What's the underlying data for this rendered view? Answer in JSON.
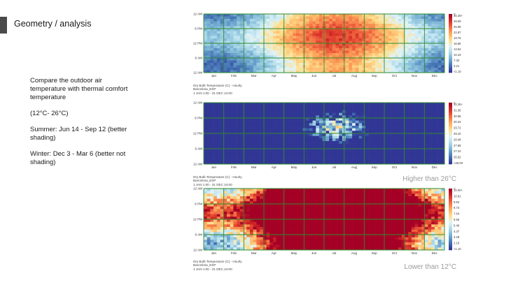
{
  "slide": {
    "title": "Geometry / analysis",
    "compare_text": "Compare the outdoor air temperature with thermal comfort temperature",
    "range_text": "(12°C- 26°C)",
    "summer_text": "Summer: Jun 14 - Sep 12 (better shading)",
    "winter_text": "Winter: Dec 3 - Mar 6 (better not shading)",
    "higher_label": "Higher than 26°C",
    "lower_label": "Lower than 12°C"
  },
  "colors": {
    "scale": [
      "#313695",
      "#4575b4",
      "#74add1",
      "#abd9e9",
      "#e0f3f8",
      "#fee090",
      "#fdae61",
      "#f46d43",
      "#d73027",
      "#a50026"
    ],
    "grid": "#2e8b2e"
  },
  "chart_data": [
    {
      "type": "heatmap",
      "title": "",
      "variable": "Dry Bulb Temperature (C) - Hourly",
      "location": "Barcelona_ESP",
      "period": "1 JAN 1:00 - 31 DEC 24:00",
      "x_ticks": [
        "Jan",
        "Feb",
        "Mar",
        "Apr",
        "May",
        "Jun",
        "Jul",
        "Aug",
        "Sep",
        "Oct",
        "Nov",
        "Dec"
      ],
      "y_ticks": [
        "12 AM",
        "6 PM",
        "12 PM",
        "6 AM",
        "12 AM"
      ],
      "legend_unit": "C",
      "legend_ticks": [
        "32.25+",
        "29.09",
        "25.98",
        "22.87",
        "19.76",
        "16.65",
        "13.54",
        "10.43",
        "7.32",
        "4.21",
        "<1.10"
      ],
      "value_range": [
        1.1,
        32.25
      ],
      "mode": "full"
    },
    {
      "type": "heatmap",
      "title": "",
      "variable": "Dry Bulb Temperature (C) - Hourly",
      "location": "Barcelona_ESP",
      "period": "1 JAN 1:00 - 31 DEC 24:00",
      "x_ticks": [
        "Jan",
        "Feb",
        "Mar",
        "Apr",
        "May",
        "Jun",
        "Jul",
        "Aug",
        "Sep",
        "Oct",
        "Nov",
        "Dec"
      ],
      "y_ticks": [
        "12 AM",
        "6 PM",
        "12 PM",
        "6 AM",
        "12 AM"
      ],
      "legend_unit": "C",
      "legend_ticks": [
        "32.25+",
        "31.56",
        "30.98",
        "30.34",
        "29.72",
        "29.10",
        "28.48",
        "27.86",
        "27.24",
        "26.62",
        "<26.00"
      ],
      "value_range": [
        26.0,
        32.25
      ],
      "mode": "above"
    },
    {
      "type": "heatmap",
      "title": "",
      "variable": "Dry Bulb Temperature (C) - Hourly",
      "location": "Barcelona_ESP",
      "period": "1 JAN 1:00 - 31 DEC 24:00",
      "x_ticks": [
        "Jan",
        "Feb",
        "Mar",
        "Apr",
        "May",
        "Jun",
        "Jul",
        "Aug",
        "Sep",
        "Oct",
        "Nov",
        "Dec"
      ],
      "y_ticks": [
        "12 AM",
        "6 PM",
        "12 PM",
        "6 AM",
        "12 AM"
      ],
      "legend_unit": "C",
      "legend_ticks": [
        "12.00+",
        "10.91",
        "9.82",
        "8.73",
        "7.64",
        "6.55",
        "5.46",
        "4.37",
        "3.28",
        "2.19",
        "<1.10"
      ],
      "value_range": [
        1.1,
        12.0
      ],
      "mode": "below"
    }
  ]
}
